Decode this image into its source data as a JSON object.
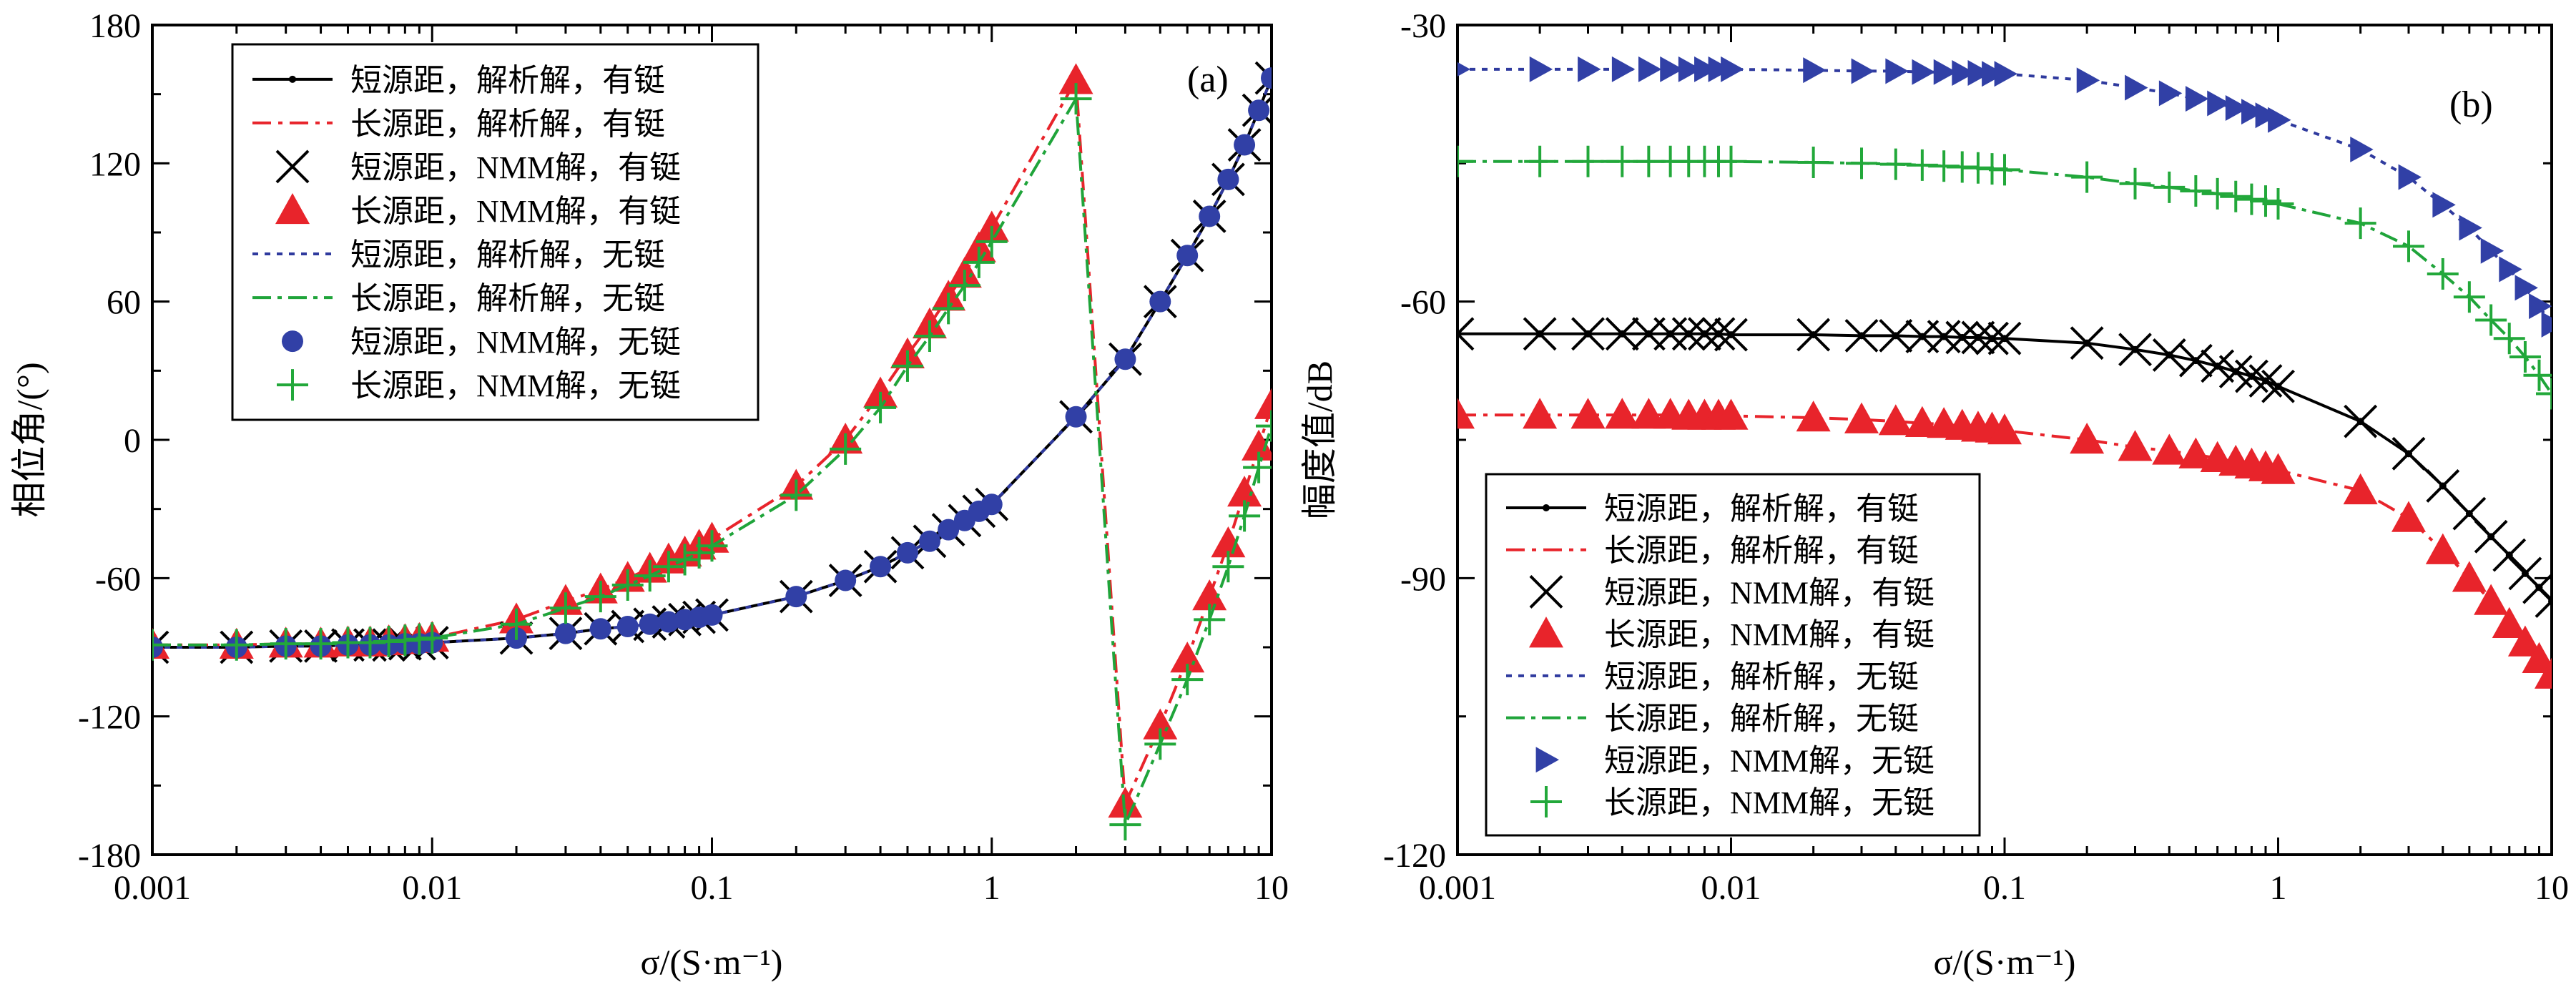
{
  "colors": {
    "short_with_collar": "#000000",
    "long_with_collar": "#e8242b",
    "short_no_collar": "#2f3a9e",
    "long_no_collar": "#1fa43a",
    "marker_blue": "#3140a6",
    "marker_red": "#e8242b",
    "marker_green": "#22a83a"
  },
  "legend_labels": [
    "短源距，解析解，有铤",
    "长源距，解析解，有铤",
    "短源距，NMM解，有铤",
    "长源距，NMM解，有铤",
    "短源距，解析解，无铤",
    "长源距，解析解，无铤",
    "短源距，NMM解，无铤",
    "长源距，NMM解，无铤"
  ],
  "chart_data": [
    {
      "type": "line",
      "panel_label": "(a)",
      "xlabel": "σ/(S·m⁻¹)",
      "ylabel": "相位角/(°)",
      "xscale": "log",
      "xlim": [
        0.001,
        10
      ],
      "ylim": [
        -180,
        180
      ],
      "x_ticks": [
        "0.001",
        "0.01",
        "0.1",
        "1",
        "10"
      ],
      "y_ticks": [
        "-180",
        "-120",
        "-60",
        "0",
        "60",
        "120",
        "180"
      ],
      "legend_position": "top-left",
      "x": [
        0.001,
        0.002,
        0.003,
        0.004,
        0.005,
        0.006,
        0.007,
        0.008,
        0.009,
        0.01,
        0.02,
        0.03,
        0.04,
        0.05,
        0.06,
        0.07,
        0.08,
        0.09,
        0.1,
        0.2,
        0.3,
        0.4,
        0.5,
        0.6,
        0.7,
        0.8,
        0.9,
        1,
        2,
        3,
        4,
        5,
        6,
        7,
        8,
        9,
        10
      ],
      "series": [
        {
          "name": "短源距，解析解，有铤",
          "values": [
            -90,
            -90,
            -89.5,
            -89.5,
            -89,
            -89,
            -89,
            -88.5,
            -88.5,
            -88,
            -86,
            -84,
            -82,
            -81,
            -80,
            -79,
            -78,
            -77,
            -76,
            -68,
            -61,
            -55,
            -49,
            -44,
            -39,
            -35,
            -31,
            -28,
            10,
            35,
            60,
            80,
            97,
            113,
            128,
            143,
            157
          ]
        },
        {
          "name": "长源距，解析解，有铤",
          "values": [
            -89,
            -89,
            -88.5,
            -88.5,
            -88,
            -88,
            -87.5,
            -87,
            -86.5,
            -86,
            -78,
            -70,
            -65,
            -60,
            -56,
            -52,
            -49,
            -46,
            -43,
            -20,
            0,
            20,
            37,
            50,
            62,
            72,
            83,
            92,
            156,
            -158,
            -124,
            -95,
            -68,
            -45,
            -23,
            -3,
            15
          ]
        },
        {
          "name": "短源距，NMM解，有铤",
          "values": [
            -90,
            -90,
            -89.5,
            -89.5,
            -89,
            -89,
            -89,
            -88.5,
            -88.5,
            -88,
            -86,
            -84,
            -82,
            -81,
            -80,
            -79,
            -78,
            -77,
            -76,
            -68,
            -61,
            -55,
            -49,
            -44,
            -39,
            -35,
            -31,
            -28,
            10,
            35,
            60,
            80,
            97,
            113,
            128,
            143,
            157
          ]
        },
        {
          "name": "长源距，NMM解，有铤",
          "values": [
            -89,
            -89,
            -88.5,
            -88.5,
            -88,
            -88,
            -87.5,
            -87,
            -86.5,
            -86,
            -78,
            -70,
            -65,
            -60,
            -56,
            -52,
            -49,
            -46,
            -43,
            -20,
            0,
            20,
            37,
            50,
            62,
            72,
            83,
            92,
            156,
            -158,
            -124,
            -95,
            -68,
            -45,
            -23,
            -3,
            15
          ]
        },
        {
          "name": "短源距，解析解，无铤",
          "values": [
            -90,
            -90,
            -89.5,
            -89.5,
            -89,
            -89,
            -89,
            -88.5,
            -88.5,
            -88,
            -86,
            -84,
            -82,
            -81,
            -80,
            -79,
            -78,
            -77,
            -76,
            -68,
            -61,
            -55,
            -49,
            -44,
            -39,
            -35,
            -31,
            -28,
            10,
            35,
            60,
            80,
            97,
            113,
            128,
            143,
            157
          ]
        },
        {
          "name": "长源距，解析解，无铤",
          "values": [
            -89,
            -89,
            -88.5,
            -88.5,
            -88,
            -88,
            -87.5,
            -87,
            -86.5,
            -86,
            -80,
            -73,
            -68,
            -63,
            -59,
            -55,
            -52,
            -49,
            -46,
            -24,
            -4,
            14,
            32,
            45,
            57,
            67,
            77,
            86,
            148,
            -167,
            -132,
            -104,
            -78,
            -55,
            -33,
            -12,
            6
          ]
        },
        {
          "name": "短源距，NMM解，无铤",
          "values": [
            -90,
            -90,
            -89.5,
            -89.5,
            -89,
            -89,
            -89,
            -88.5,
            -88.5,
            -88,
            -86,
            -84,
            -82,
            -81,
            -80,
            -79,
            -78,
            -77,
            -76,
            -68,
            -61,
            -55,
            -49,
            -44,
            -39,
            -35,
            -31,
            -28,
            10,
            35,
            60,
            80,
            97,
            113,
            128,
            143,
            157
          ]
        },
        {
          "name": "长源距，NMM解，无铤",
          "values": [
            -89,
            -89,
            -88.5,
            -88.5,
            -88,
            -88,
            -87.5,
            -87,
            -86.5,
            -86,
            -80,
            -73,
            -68,
            -63,
            -59,
            -55,
            -52,
            -49,
            -46,
            -24,
            -4,
            14,
            32,
            45,
            57,
            67,
            77,
            86,
            148,
            -167,
            -132,
            -104,
            -78,
            -55,
            -33,
            -12,
            6
          ]
        }
      ]
    },
    {
      "type": "line",
      "panel_label": "(b)",
      "xlabel": "σ/(S·m⁻¹)",
      "ylabel": "幅度值/dB",
      "xscale": "log",
      "xlim": [
        0.001,
        10
      ],
      "ylim": [
        -120,
        -30
      ],
      "x_ticks": [
        "0.001",
        "0.01",
        "0.1",
        "1",
        "10"
      ],
      "y_ticks": [
        "-120",
        "-90",
        "-60",
        "-30"
      ],
      "legend_position": "bottom-left",
      "x": [
        0.001,
        0.002,
        0.003,
        0.004,
        0.005,
        0.006,
        0.007,
        0.008,
        0.009,
        0.01,
        0.02,
        0.03,
        0.04,
        0.05,
        0.06,
        0.07,
        0.08,
        0.09,
        0.1,
        0.2,
        0.3,
        0.4,
        0.5,
        0.6,
        0.7,
        0.8,
        0.9,
        1,
        2,
        3,
        4,
        5,
        6,
        7,
        8,
        9,
        10
      ],
      "series": [
        {
          "name": "短源距，解析解，有铤",
          "values": [
            -63.5,
            -63.5,
            -63.5,
            -63.5,
            -63.5,
            -63.5,
            -63.5,
            -63.5,
            -63.5,
            -63.6,
            -63.6,
            -63.7,
            -63.7,
            -63.8,
            -63.8,
            -63.9,
            -63.9,
            -64,
            -64,
            -64.5,
            -65.2,
            -65.8,
            -66.4,
            -67,
            -67.6,
            -68.1,
            -68.6,
            -69.2,
            -73,
            -76.5,
            -80,
            -83,
            -85.5,
            -87.5,
            -89.5,
            -91,
            -92.5
          ]
        },
        {
          "name": "长源距，解析解，有铤",
          "values": [
            -72.3,
            -72.3,
            -72.3,
            -72.3,
            -72.3,
            -72.3,
            -72.4,
            -72.4,
            -72.4,
            -72.4,
            -72.6,
            -72.8,
            -73,
            -73.2,
            -73.3,
            -73.5,
            -73.7,
            -73.8,
            -74,
            -75,
            -75.8,
            -76.2,
            -76.6,
            -77,
            -77.4,
            -77.7,
            -78,
            -78.3,
            -80.5,
            -83.5,
            -87,
            -90,
            -92.5,
            -95,
            -97,
            -98.8,
            -100.5
          ]
        },
        {
          "name": "短源距，NMM解，有铤",
          "values": [
            -63.5,
            -63.5,
            -63.5,
            -63.5,
            -63.5,
            -63.5,
            -63.5,
            -63.5,
            -63.5,
            -63.6,
            -63.6,
            -63.7,
            -63.7,
            -63.8,
            -63.8,
            -63.9,
            -63.9,
            -64,
            -64,
            -64.5,
            -65.2,
            -65.8,
            -66.4,
            -67,
            -67.6,
            -68.1,
            -68.6,
            -69.2,
            -73,
            -76.5,
            -80,
            -83,
            -85.5,
            -87.5,
            -89.5,
            -91,
            -92.5
          ]
        },
        {
          "name": "长源距，NMM解，有铤",
          "values": [
            -72.3,
            -72.3,
            -72.3,
            -72.3,
            -72.3,
            -72.3,
            -72.4,
            -72.4,
            -72.4,
            -72.4,
            -72.6,
            -72.8,
            -73,
            -73.2,
            -73.3,
            -73.5,
            -73.7,
            -73.8,
            -74,
            -75,
            -75.8,
            -76.2,
            -76.6,
            -77,
            -77.4,
            -77.7,
            -78,
            -78.3,
            -80.5,
            -83.5,
            -87,
            -90,
            -92.5,
            -95,
            -97,
            -98.8,
            -100.5
          ]
        },
        {
          "name": "短源距，解析解，无铤",
          "values": [
            -34.8,
            -34.8,
            -34.8,
            -34.8,
            -34.8,
            -34.8,
            -34.8,
            -34.8,
            -34.8,
            -34.8,
            -34.9,
            -35,
            -35,
            -35.1,
            -35.1,
            -35.2,
            -35.2,
            -35.3,
            -35.3,
            -36,
            -36.8,
            -37.4,
            -38,
            -38.5,
            -39,
            -39.4,
            -39.8,
            -40.3,
            -43.5,
            -46.5,
            -49.5,
            -52,
            -54.5,
            -56.5,
            -58.5,
            -60.5,
            -62.5
          ]
        },
        {
          "name": "长源距，解析解，无铤",
          "values": [
            -44.8,
            -44.8,
            -44.8,
            -44.8,
            -44.8,
            -44.8,
            -44.8,
            -44.8,
            -44.8,
            -44.8,
            -44.9,
            -45,
            -45.1,
            -45.2,
            -45.3,
            -45.4,
            -45.5,
            -45.6,
            -45.7,
            -46.5,
            -47.2,
            -47.6,
            -48,
            -48.3,
            -48.6,
            -48.9,
            -49.1,
            -49.4,
            -51.5,
            -54,
            -57,
            -59.5,
            -62,
            -64,
            -66,
            -68,
            -70
          ]
        },
        {
          "name": "短源距，NMM解，无铤",
          "values": [
            -34.8,
            -34.8,
            -34.8,
            -34.8,
            -34.8,
            -34.8,
            -34.8,
            -34.8,
            -34.8,
            -34.8,
            -34.9,
            -35,
            -35,
            -35.1,
            -35.1,
            -35.2,
            -35.2,
            -35.3,
            -35.3,
            -36,
            -36.8,
            -37.4,
            -38,
            -38.5,
            -39,
            -39.4,
            -39.8,
            -40.3,
            -43.5,
            -46.5,
            -49.5,
            -52,
            -54.5,
            -56.5,
            -58.5,
            -60.5,
            -62.5
          ]
        },
        {
          "name": "长源距，NMM解，无铤",
          "values": [
            -44.8,
            -44.8,
            -44.8,
            -44.8,
            -44.8,
            -44.8,
            -44.8,
            -44.8,
            -44.8,
            -44.8,
            -44.9,
            -45,
            -45.1,
            -45.2,
            -45.3,
            -45.4,
            -45.5,
            -45.6,
            -45.7,
            -46.5,
            -47.2,
            -47.6,
            -48,
            -48.3,
            -48.6,
            -48.9,
            -49.1,
            -49.4,
            -51.5,
            -54,
            -57,
            -59.5,
            -62,
            -64,
            -66,
            -68,
            -70
          ]
        }
      ]
    }
  ]
}
